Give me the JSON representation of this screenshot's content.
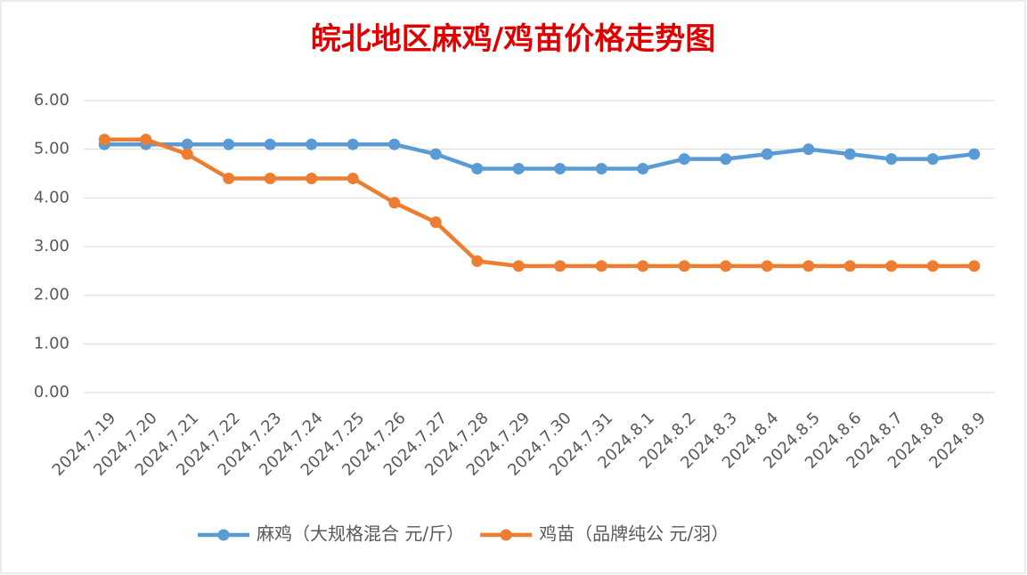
{
  "chart_data": {
    "type": "line",
    "title": "皖北地区麻鸡/鸡苗价格走势图",
    "categories": [
      "2024.7.19",
      "2024.7.20",
      "2024.7.21",
      "2024.7.22",
      "2024.7.23",
      "2024.7.24",
      "2024.7.25",
      "2024.7.26",
      "2024.7.27",
      "2024.7.28",
      "2024.7.29",
      "2024.7.30",
      "2024.7.31",
      "2024.8.1",
      "2024.8.2",
      "2024.8.3",
      "2024.8.4",
      "2024.8.5",
      "2024.8.6",
      "2024.8.7",
      "2024.8.8",
      "2024.8.9"
    ],
    "series": [
      {
        "name": "麻鸡（大规格混合 元/斤）",
        "color": "#5b9bd5",
        "values": [
          5.1,
          5.1,
          5.1,
          5.1,
          5.1,
          5.1,
          5.1,
          5.1,
          4.9,
          4.6,
          4.6,
          4.6,
          4.6,
          4.6,
          4.8,
          4.8,
          4.9,
          5.0,
          4.9,
          4.8,
          4.8,
          4.9
        ]
      },
      {
        "name": "鸡苗（品牌纯公 元/羽）",
        "color": "#ed7d31",
        "values": [
          5.2,
          5.2,
          4.9,
          4.4,
          4.4,
          4.4,
          4.4,
          3.9,
          3.5,
          2.7,
          2.6,
          2.6,
          2.6,
          2.6,
          2.6,
          2.6,
          2.6,
          2.6,
          2.6,
          2.6,
          2.6,
          2.6
        ]
      }
    ],
    "ylim": [
      0,
      6
    ],
    "yticks": [
      {
        "value": 0,
        "label": "0.00"
      },
      {
        "value": 1,
        "label": "1.00"
      },
      {
        "value": 2,
        "label": "2.00"
      },
      {
        "value": 3,
        "label": "3.00"
      },
      {
        "value": 4,
        "label": "4.00"
      },
      {
        "value": 5,
        "label": "5.00"
      },
      {
        "value": 6,
        "label": "6.00"
      }
    ],
    "grid": true,
    "legend": "bottom"
  }
}
